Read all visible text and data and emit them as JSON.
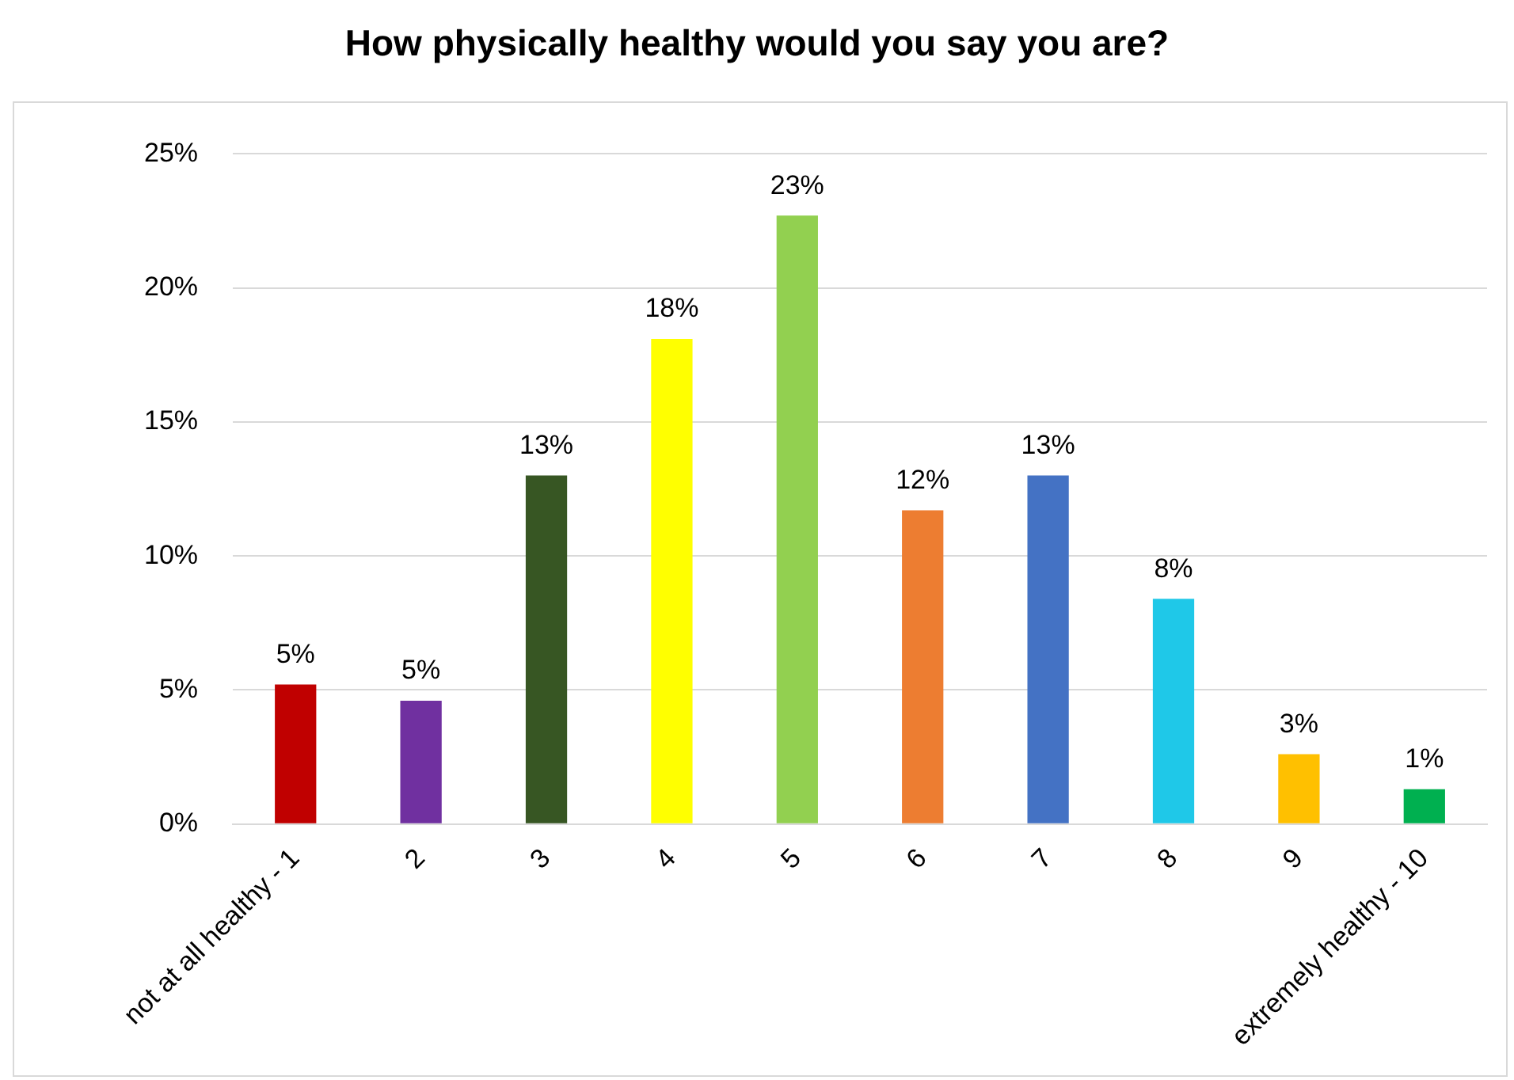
{
  "chart_data": {
    "type": "bar",
    "title": "How physically healthy would you say you are?",
    "categories": [
      "not at all healthy - 1",
      "2",
      "3",
      "4",
      "5",
      "6",
      "7",
      "8",
      "9",
      "extremely healthy - 10"
    ],
    "values": [
      5.2,
      4.6,
      13,
      18.1,
      22.7,
      11.7,
      13,
      8.4,
      2.6,
      1.3
    ],
    "value_labels": [
      "5%",
      "5%",
      "13%",
      "18%",
      "23%",
      "12%",
      "13%",
      "8%",
      "3%",
      "1%"
    ],
    "colors": [
      "#c00000",
      "#7030a0",
      "#375623",
      "#ffff00",
      "#92d050",
      "#ed7d31",
      "#4472c4",
      "#1fc8e8",
      "#ffc000",
      "#00b050"
    ],
    "ylim": [
      0,
      25
    ],
    "yticks": [
      {
        "value": 0,
        "label": "0%"
      },
      {
        "value": 5,
        "label": "5%"
      },
      {
        "value": 10,
        "label": "10%"
      },
      {
        "value": 15,
        "label": "15%"
      },
      {
        "value": 20,
        "label": "20%"
      },
      {
        "value": 25,
        "label": "25%"
      }
    ],
    "grid": "y",
    "legend": false
  }
}
